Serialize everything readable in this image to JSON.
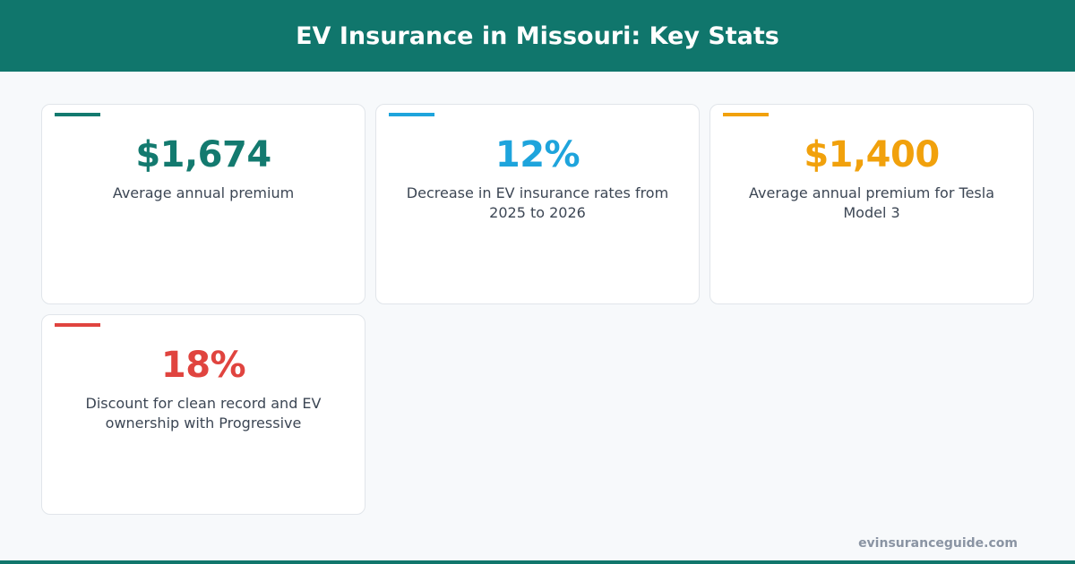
{
  "header": {
    "title": "EV Insurance in Missouri: Key Stats"
  },
  "cards": [
    {
      "value": "$1,674",
      "label": "Average annual premium",
      "color": "#137a6f"
    },
    {
      "value": "12%",
      "label": "Decrease in EV insurance rates from 2025 to 2026",
      "color": "#1ea4dc"
    },
    {
      "value": "$1,400",
      "label": "Average annual premium for Tesla Model 3",
      "color": "#f1a10c"
    },
    {
      "value": "18%",
      "label": "Discount for clean record and EV ownership with Progressive",
      "color": "#e0443f"
    }
  ],
  "footer": {
    "source": "evinsuranceguide.com"
  }
}
